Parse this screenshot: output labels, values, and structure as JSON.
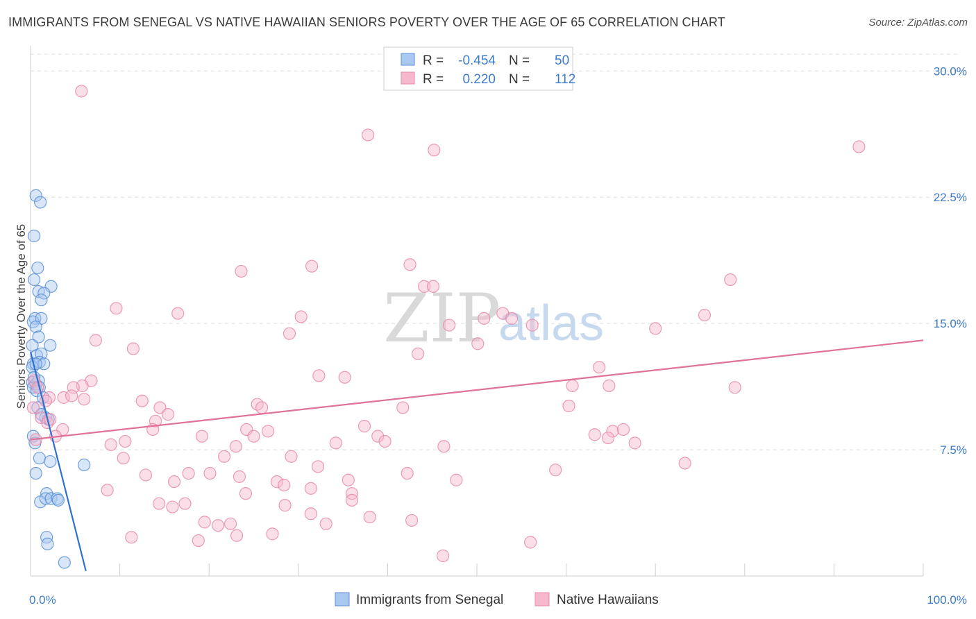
{
  "header": {
    "title": "IMMIGRANTS FROM SENEGAL VS NATIVE HAWAIIAN SENIORS POVERTY OVER THE AGE OF 65 CORRELATION CHART",
    "source": "Source: ZipAtlas.com"
  },
  "watermark": {
    "zip": "ZIP",
    "atlas": "atlas"
  },
  "colors": {
    "senegal_fill": "#a9c8f0",
    "senegal_stroke": "#5b8fd6",
    "senegal_line": "#2f6fcf",
    "hawaiian_fill": "#f6b8cc",
    "hawaiian_stroke": "#e88aa8",
    "hawaiian_line": "#e0719a",
    "tick_label": "#3d7cc9",
    "grid": "#dddddd"
  },
  "legend": {
    "r_label": "R =",
    "n_label": "N =",
    "rows": [
      {
        "r": "-0.454",
        "n": "50"
      },
      {
        "r": "0.220",
        "n": "112"
      }
    ]
  },
  "chart_data": {
    "type": "scatter",
    "title": "IMMIGRANTS FROM SENEGAL VS NATIVE HAWAIIAN SENIORS POVERTY OVER THE AGE OF 65 CORRELATION CHART",
    "xlabel": "",
    "ylabel": "Seniors Poverty Over the Age of 65",
    "xlim": [
      0,
      100
    ],
    "ylim": [
      0,
      31
    ],
    "x_tick_labels": [
      "0.0%",
      "100.0%"
    ],
    "y_ticks": [
      7.5,
      15.0,
      22.5,
      30.0
    ],
    "y_tick_labels": [
      "7.5%",
      "15.0%",
      "22.5%",
      "30.0%"
    ],
    "grid": true,
    "legend_position": "top-center",
    "series": [
      {
        "name": "Immigrants from Senegal",
        "r": -0.454,
        "n": 50,
        "trend": {
          "x": [
            0.0,
            6.2
          ],
          "y": [
            13.3,
            0.3
          ]
        },
        "points": [
          [
            0.6,
            22.6
          ],
          [
            1.1,
            22.2
          ],
          [
            0.4,
            20.2
          ],
          [
            0.8,
            18.3
          ],
          [
            0.4,
            17.6
          ],
          [
            2.3,
            17.2
          ],
          [
            0.9,
            16.9
          ],
          [
            1.5,
            16.8
          ],
          [
            1.2,
            16.4
          ],
          [
            0.5,
            15.3
          ],
          [
            0.3,
            15.1
          ],
          [
            1.2,
            15.3
          ],
          [
            0.6,
            14.8
          ],
          [
            0.9,
            14.2
          ],
          [
            0.2,
            13.7
          ],
          [
            2.2,
            13.7
          ],
          [
            0.7,
            13.1
          ],
          [
            1.2,
            13.2
          ],
          [
            0.3,
            12.6
          ],
          [
            1.0,
            12.7
          ],
          [
            1.5,
            12.6
          ],
          [
            0.2,
            12.4
          ],
          [
            0.6,
            12.6
          ],
          [
            0.2,
            11.5
          ],
          [
            0.6,
            11.4
          ],
          [
            0.9,
            11.6
          ],
          [
            0.3,
            11.2
          ],
          [
            1.0,
            11.2
          ],
          [
            0.7,
            11.0
          ],
          [
            1.4,
            10.6
          ],
          [
            0.8,
            10.0
          ],
          [
            1.2,
            9.6
          ],
          [
            1.7,
            9.4
          ],
          [
            2.0,
            9.3
          ],
          [
            0.3,
            8.3
          ],
          [
            0.5,
            7.9
          ],
          [
            1.0,
            7.0
          ],
          [
            2.2,
            6.8
          ],
          [
            6.0,
            6.6
          ],
          [
            0.6,
            6.1
          ],
          [
            1.8,
            4.9
          ],
          [
            1.1,
            4.4
          ],
          [
            1.7,
            4.6
          ],
          [
            2.3,
            4.6
          ],
          [
            3.0,
            4.6
          ],
          [
            3.1,
            4.5
          ],
          [
            1.8,
            2.3
          ],
          [
            1.9,
            1.9
          ],
          [
            3.8,
            0.8
          ],
          [
            0.4,
            11.8
          ]
        ]
      },
      {
        "name": "Native Hawaiians",
        "r": 0.22,
        "n": 112,
        "trend": {
          "x": [
            0.0,
            100.0
          ],
          "y": [
            8.1,
            14.0
          ]
        },
        "points": [
          [
            5.7,
            28.8
          ],
          [
            37.8,
            26.2
          ],
          [
            45.2,
            25.3
          ],
          [
            92.8,
            25.5
          ],
          [
            31.5,
            18.4
          ],
          [
            42.5,
            18.5
          ],
          [
            23.6,
            18.1
          ],
          [
            44.1,
            17.2
          ],
          [
            45.1,
            17.2
          ],
          [
            78.4,
            17.6
          ],
          [
            9.6,
            15.9
          ],
          [
            16.5,
            15.6
          ],
          [
            30.3,
            15.4
          ],
          [
            52.9,
            15.6
          ],
          [
            53.9,
            15.3
          ],
          [
            50.8,
            15.3
          ],
          [
            56.2,
            14.9
          ],
          [
            46.9,
            14.9
          ],
          [
            29.0,
            14.4
          ],
          [
            70.0,
            14.7
          ],
          [
            75.5,
            15.5
          ],
          [
            7.3,
            14.0
          ],
          [
            11.5,
            13.5
          ],
          [
            50.1,
            13.8
          ],
          [
            43.4,
            13.2
          ],
          [
            63.7,
            12.4
          ],
          [
            32.3,
            11.9
          ],
          [
            35.2,
            11.8
          ],
          [
            6.8,
            11.6
          ],
          [
            5.8,
            11.3
          ],
          [
            4.8,
            11.2
          ],
          [
            0.4,
            11.6
          ],
          [
            0.8,
            11.2
          ],
          [
            78.9,
            11.2
          ],
          [
            60.7,
            11.3
          ],
          [
            64.8,
            11.3
          ],
          [
            2.1,
            10.6
          ],
          [
            3.7,
            10.6
          ],
          [
            4.6,
            10.7
          ],
          [
            1.7,
            10.4
          ],
          [
            6.0,
            10.5
          ],
          [
            12.5,
            10.4
          ],
          [
            14.5,
            10.0
          ],
          [
            25.4,
            10.2
          ],
          [
            25.9,
            10.0
          ],
          [
            41.7,
            10.0
          ],
          [
            60.3,
            10.1
          ],
          [
            0.3,
            10.0
          ],
          [
            1.2,
            9.4
          ],
          [
            1.9,
            9.1
          ],
          [
            2.2,
            9.3
          ],
          [
            15.4,
            9.6
          ],
          [
            14.0,
            9.2
          ],
          [
            3.6,
            8.7
          ],
          [
            13.7,
            8.7
          ],
          [
            24.2,
            8.7
          ],
          [
            26.6,
            8.6
          ],
          [
            37.4,
            8.9
          ],
          [
            63.2,
            8.4
          ],
          [
            65.2,
            8.6
          ],
          [
            66.4,
            8.7
          ],
          [
            19.2,
            8.3
          ],
          [
            25.0,
            8.3
          ],
          [
            38.9,
            8.3
          ],
          [
            39.7,
            8.0
          ],
          [
            64.7,
            8.2
          ],
          [
            9.0,
            7.8
          ],
          [
            10.6,
            8.0
          ],
          [
            23.0,
            7.7
          ],
          [
            34.2,
            7.9
          ],
          [
            46.3,
            7.7
          ],
          [
            67.7,
            7.9
          ],
          [
            10.4,
            7.0
          ],
          [
            21.7,
            7.1
          ],
          [
            29.2,
            7.1
          ],
          [
            32.2,
            6.5
          ],
          [
            42.2,
            6.1
          ],
          [
            58.8,
            6.3
          ],
          [
            73.3,
            6.7
          ],
          [
            12.9,
            6.0
          ],
          [
            17.7,
            6.1
          ],
          [
            20.1,
            6.1
          ],
          [
            23.4,
            5.9
          ],
          [
            27.6,
            5.6
          ],
          [
            31.4,
            5.2
          ],
          [
            35.6,
            5.7
          ],
          [
            47.7,
            5.7
          ],
          [
            16.1,
            5.6
          ],
          [
            8.6,
            5.1
          ],
          [
            24.1,
            4.9
          ],
          [
            28.4,
            5.4
          ],
          [
            36.0,
            4.9
          ],
          [
            17.3,
            4.3
          ],
          [
            14.4,
            4.3
          ],
          [
            15.9,
            4.1
          ],
          [
            28.5,
            4.2
          ],
          [
            31.4,
            3.7
          ],
          [
            36.0,
            4.5
          ],
          [
            38.0,
            3.5
          ],
          [
            42.7,
            3.3
          ],
          [
            19.5,
            3.2
          ],
          [
            21.0,
            3.0
          ],
          [
            22.4,
            3.1
          ],
          [
            33.1,
            3.1
          ],
          [
            27.1,
            2.5
          ],
          [
            11.3,
            2.3
          ],
          [
            18.8,
            2.1
          ],
          [
            23.1,
            2.4
          ],
          [
            56.0,
            2.0
          ],
          [
            46.2,
            1.2
          ],
          [
            0.6,
            8.1
          ],
          [
            2.8,
            8.3
          ]
        ]
      }
    ],
    "legend": [
      "Immigrants from Senegal",
      "Native Hawaiians"
    ]
  }
}
